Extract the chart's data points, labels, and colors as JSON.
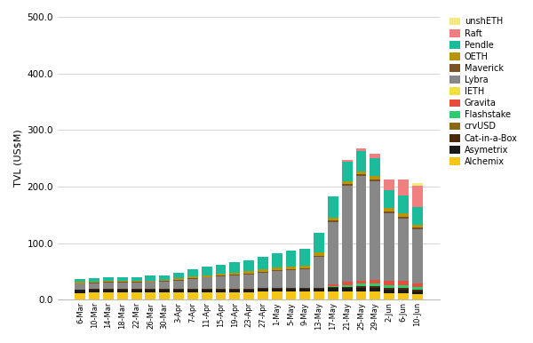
{
  "dates": [
    "6-Mar",
    "10-Mar",
    "14-Mar",
    "18-Mar",
    "22-Mar",
    "26-Mar",
    "30-Mar",
    "3-Apr",
    "7-Apr",
    "11-Apr",
    "15-Apr",
    "19-Apr",
    "23-Apr",
    "27-Apr",
    "1-May",
    "5-May",
    "9-May",
    "13-May",
    "17-May",
    "21-May",
    "25-May",
    "29-May",
    "2-Jun",
    "6-Jun",
    "10-Jun"
  ],
  "series": {
    "Alchemix": [
      12,
      13,
      13,
      13,
      13,
      13,
      13,
      13,
      13,
      13,
      13,
      13,
      13,
      14,
      14,
      14,
      14,
      14,
      15,
      15,
      15,
      15,
      12,
      12,
      10
    ],
    "Asymetrix": [
      5,
      5,
      5,
      5,
      5,
      5,
      5,
      5,
      5,
      5,
      5,
      5,
      5,
      5,
      5,
      5,
      5,
      5,
      5,
      5,
      5,
      5,
      5,
      5,
      5
    ],
    "Cat-in-a-Box": [
      1,
      1,
      1,
      1,
      1,
      1,
      1,
      1,
      1,
      1,
      1,
      1,
      1,
      1,
      1,
      1,
      1,
      1,
      2,
      3,
      4,
      4,
      4,
      4,
      3
    ],
    "crvUSD": [
      0,
      0,
      0,
      0,
      0,
      0,
      0,
      0,
      0,
      0,
      0,
      0,
      0,
      0,
      0,
      0,
      0,
      0,
      0,
      0,
      0,
      0,
      0,
      0,
      0
    ],
    "Flashstake": [
      0,
      0,
      0,
      0,
      0,
      0,
      0,
      0,
      0,
      0,
      0,
      0,
      0,
      0,
      0,
      0,
      0,
      0,
      2,
      3,
      4,
      4,
      4,
      4,
      4
    ],
    "Gravita": [
      0,
      0,
      0,
      0,
      0,
      0,
      0,
      0,
      0,
      0,
      0,
      0,
      0,
      0,
      0,
      0,
      0,
      0,
      3,
      5,
      6,
      7,
      8,
      8,
      7
    ],
    "IETH": [
      0,
      0,
      0,
      0,
      0,
      0,
      0,
      0,
      0,
      0,
      0,
      0,
      0,
      0,
      0,
      0,
      0,
      0,
      0,
      0,
      0,
      0,
      0,
      0,
      0
    ],
    "Lybra": [
      10,
      10,
      11,
      11,
      11,
      12,
      13,
      15,
      18,
      20,
      22,
      24,
      25,
      27,
      30,
      32,
      33,
      55,
      110,
      170,
      185,
      175,
      120,
      110,
      95
    ],
    "Maverick": [
      1,
      1,
      1,
      1,
      1,
      1,
      1,
      1,
      1,
      1,
      1,
      1,
      2,
      2,
      2,
      2,
      2,
      3,
      3,
      3,
      3,
      3,
      3,
      3,
      3
    ],
    "OETH": [
      2,
      2,
      2,
      2,
      2,
      2,
      2,
      3,
      3,
      3,
      4,
      4,
      4,
      4,
      5,
      5,
      5,
      5,
      5,
      5,
      5,
      5,
      6,
      6,
      6
    ],
    "Pendle": [
      5,
      6,
      7,
      7,
      7,
      8,
      8,
      10,
      13,
      16,
      16,
      18,
      20,
      22,
      25,
      28,
      30,
      35,
      38,
      35,
      35,
      32,
      32,
      32,
      30
    ],
    "Raft": [
      0,
      0,
      0,
      0,
      0,
      0,
      0,
      0,
      0,
      0,
      0,
      0,
      0,
      0,
      0,
      0,
      0,
      0,
      0,
      3,
      6,
      8,
      18,
      28,
      38
    ],
    "unshETH": [
      0,
      0,
      0,
      0,
      0,
      0,
      0,
      0,
      0,
      0,
      0,
      0,
      0,
      0,
      0,
      0,
      0,
      0,
      0,
      0,
      0,
      0,
      0,
      0,
      5
    ]
  },
  "colors": {
    "Alchemix": "#F5C518",
    "Asymetrix": "#1a1a1a",
    "Cat-in-a-Box": "#4a2a0a",
    "crvUSD": "#8B6914",
    "Flashstake": "#2ECC71",
    "Gravita": "#E74C3C",
    "IETH": "#F0E040",
    "Lybra": "#888888",
    "Maverick": "#7B5226",
    "OETH": "#B8940a",
    "Pendle": "#1ABC9C",
    "Raft": "#F08080",
    "unshETH": "#F5E87C"
  },
  "ylabel": "TVL (US$M)",
  "ylim": [
    0,
    500
  ],
  "yticks": [
    0.0,
    100.0,
    200.0,
    300.0,
    400.0,
    500.0
  ],
  "bg_color": "#ffffff",
  "grid_color": "#cccccc",
  "legend_order": [
    "unshETH",
    "Raft",
    "Pendle",
    "OETH",
    "Maverick",
    "Lybra",
    "IETH",
    "Gravita",
    "Flashstake",
    "crvUSD",
    "Cat-in-a-Box",
    "Asymetrix",
    "Alchemix"
  ],
  "stack_order": [
    "Alchemix",
    "Asymetrix",
    "Cat-in-a-Box",
    "crvUSD",
    "Flashstake",
    "Gravita",
    "IETH",
    "Lybra",
    "Maverick",
    "OETH",
    "Pendle",
    "Raft",
    "unshETH"
  ]
}
